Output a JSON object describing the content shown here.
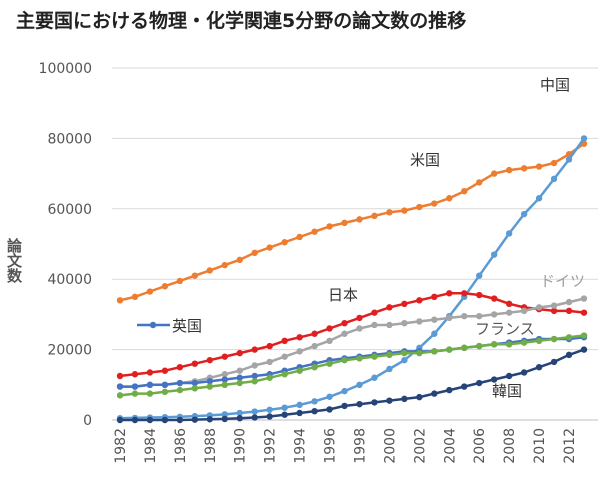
{
  "chart_data": {
    "type": "line",
    "title": "主要国における物理・化学関連5分野の論文数の推移",
    "ylabel": "論文数",
    "xlabel": "",
    "ylim": [
      0,
      100000
    ],
    "yticks": [
      "0",
      "20000",
      "40000",
      "60000",
      "80000",
      "100000"
    ],
    "xticklabels": [
      "1982",
      "1984",
      "1986",
      "1988",
      "1990",
      "1992",
      "1994",
      "1996",
      "1998",
      "2000",
      "2002",
      "2004",
      "2006",
      "2008",
      "2010",
      "2012"
    ],
    "grid": true,
    "x": [
      1982,
      1983,
      1984,
      1985,
      1986,
      1987,
      1988,
      1989,
      1990,
      1991,
      1992,
      1993,
      1994,
      1995,
      1996,
      1997,
      1998,
      1999,
      2000,
      2001,
      2002,
      2003,
      2004,
      2005,
      2006,
      2007,
      2008,
      2009,
      2010,
      2011,
      2012,
      2013
    ],
    "series": [
      {
        "name": "米国",
        "color": "#ED7D31",
        "values": [
          34000,
          35000,
          36500,
          38000,
          39500,
          41000,
          42500,
          44000,
          45500,
          47500,
          49000,
          50500,
          52000,
          53500,
          55000,
          56000,
          57000,
          58000,
          59000,
          59500,
          60500,
          61500,
          63000,
          65000,
          67500,
          70000,
          71000,
          71500,
          72000,
          73000,
          75500,
          78500
        ]
      },
      {
        "name": "中国",
        "color": "#5B9BD5",
        "values": [
          500,
          600,
          700,
          800,
          900,
          1100,
          1300,
          1600,
          2000,
          2400,
          2900,
          3500,
          4300,
          5300,
          6600,
          8200,
          10000,
          12000,
          14500,
          17000,
          20500,
          24500,
          29500,
          35000,
          41000,
          47000,
          53000,
          58500,
          63000,
          68500,
          74000,
          80000
        ]
      },
      {
        "name": "日本",
        "color": "#E02020",
        "values": [
          12500,
          13000,
          13500,
          14000,
          15000,
          16000,
          17000,
          18000,
          19000,
          20000,
          21000,
          22500,
          23500,
          24500,
          26000,
          27500,
          29000,
          30500,
          32000,
          33000,
          34000,
          35000,
          36000,
          36000,
          35500,
          34500,
          33000,
          32000,
          31500,
          31000,
          31000,
          30500
        ]
      },
      {
        "name": "ドイツ",
        "color": "#A5A5A5",
        "values": [
          9500,
          9500,
          10000,
          10000,
          10500,
          11000,
          12000,
          13000,
          14000,
          15500,
          16500,
          18000,
          19500,
          21000,
          22500,
          24500,
          26000,
          27000,
          27000,
          27500,
          28000,
          28500,
          29000,
          29500,
          29500,
          30000,
          30500,
          31000,
          32000,
          32500,
          33500,
          34500
        ]
      },
      {
        "name": "英国",
        "color": "#4472C4",
        "values": [
          9500,
          9500,
          10000,
          10000,
          10500,
          10500,
          11000,
          11500,
          12000,
          12500,
          13000,
          14000,
          15000,
          16000,
          17000,
          17500,
          18000,
          18500,
          19000,
          19500,
          19500,
          19500,
          20000,
          20500,
          21000,
          21500,
          22000,
          22500,
          23000,
          23000,
          23000,
          23500
        ]
      },
      {
        "name": "フランス",
        "color": "#70AD47",
        "values": [
          7000,
          7500,
          7500,
          8000,
          8500,
          9000,
          9500,
          10000,
          10500,
          11000,
          12000,
          13000,
          14000,
          15000,
          16000,
          17000,
          17500,
          18000,
          18500,
          19000,
          19000,
          19500,
          20000,
          20500,
          21000,
          21500,
          21500,
          22000,
          22500,
          23000,
          23500,
          24000
        ]
      },
      {
        "name": "韓国",
        "color": "#264478",
        "values": [
          0,
          0,
          0,
          0,
          0,
          100,
          200,
          300,
          500,
          700,
          1000,
          1500,
          2000,
          2500,
          3000,
          4000,
          4500,
          5000,
          5500,
          6000,
          6500,
          7500,
          8500,
          9500,
          10500,
          11500,
          12500,
          13500,
          15000,
          16500,
          18500,
          20000
        ]
      }
    ],
    "annotations": [
      "中国",
      "米国",
      "日本",
      "ドイツ",
      "フランス",
      "韓国",
      "英国"
    ]
  }
}
